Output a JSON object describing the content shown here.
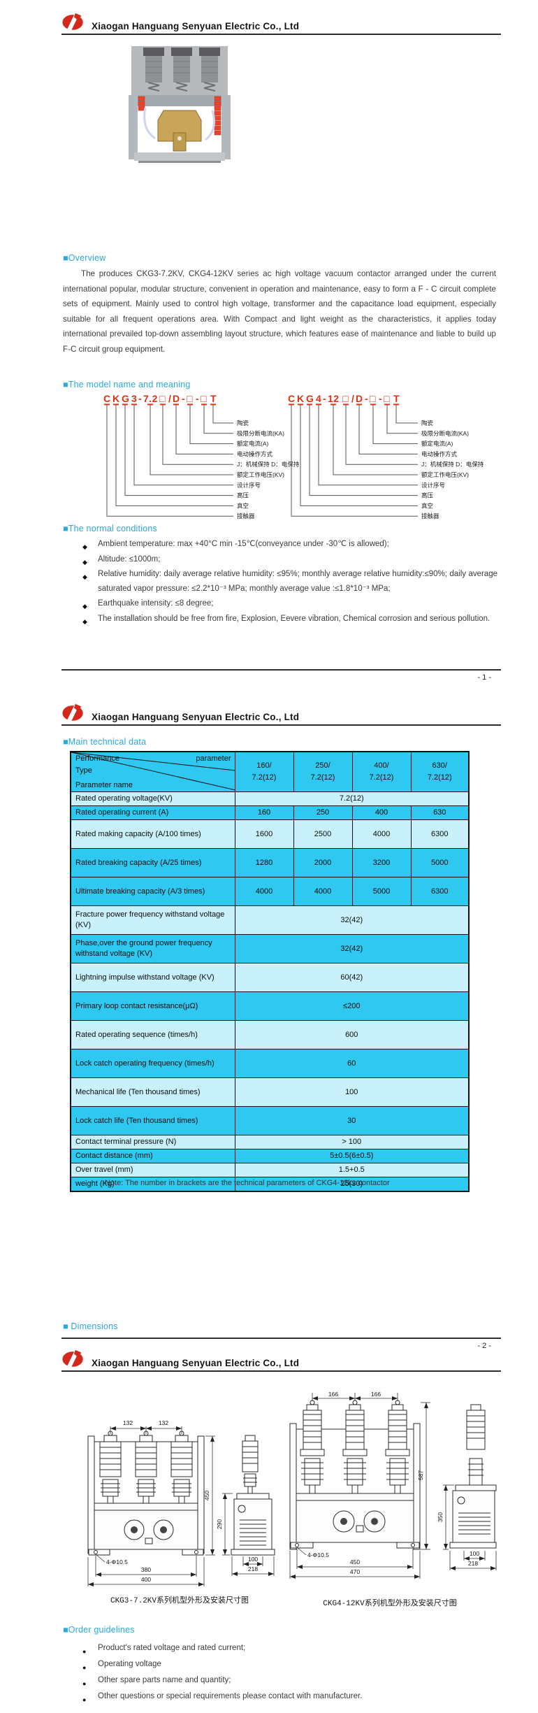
{
  "header": {
    "company": "Xiaogan Hanguang Senyuan Electric Co., Ltd"
  },
  "page_numbers": {
    "p1": "- 1 -",
    "p2": "- 2 -"
  },
  "colors": {
    "accent": "#2BA7DC",
    "model_red": "#E23012",
    "logo_red": "#D6281A",
    "table_dark": "#2EC8F0",
    "table_light": "#C9F1FB"
  },
  "sections": {
    "overview": {
      "title": "■Overview",
      "body": "The produces CKG3-7.2KV, CKG4-12KV series ac high voltage vacuum contactor arranged under the current international popular, modular structure, convenient in operation and maintenance, easy to form a F - C circuit complete sets of equipment. Mainly used to control high voltage, transformer and the capacitance load equipment, especially suitable for all frequent operations area. With Compact and light weight as the characteristics, it applies today international prevailed top-down assembling layout structure, which features ease of maintenance and liable to build up F-C circuit group equipment."
    },
    "model_diagrams": {
      "title": "■The model name and meaning",
      "left": {
        "model": "CKG3-7.2□/D-□-□T",
        "segments": [
          "C",
          "K",
          "G",
          "3",
          "-",
          "7.2",
          "□",
          "/",
          "D",
          "-",
          "□",
          "-",
          "□",
          "T"
        ]
      },
      "right": {
        "model": "CKG4-12□/D-□-□T",
        "segments": [
          "C",
          "K",
          "G",
          "4",
          "-",
          "12",
          "□",
          "/",
          "D",
          "-",
          "□",
          "-",
          "□",
          "T"
        ]
      },
      "labels": [
        "陶瓷",
        "极限分断电流(KA)",
        "额定电流(A)",
        "电动操作方式",
        "J：机械保持 D：电保持",
        "额定工作电压(KV)",
        "设计序号",
        "高压",
        "真空",
        "接触器"
      ]
    },
    "normal": {
      "title": "■The normal conditions",
      "bullets": [
        "Ambient temperature: max +40°C min -15℃(conveyance under -30℃  is allowed);",
        "Altitude: ≤1000m;",
        "Relative humidity: daily average relative humidity: ≤95%; monthly average relative humidity:≤90%; daily average saturated vapor pressure: ≤2.2*10⁻³ MPa; monthly average value :≤1.8*10⁻³ MPa;",
        "Earthquake intensity: ≤8 degree;",
        "The installation should be free from fire, Explosion, Eevere vibration, Chemical corrosion and serious pollution."
      ]
    },
    "technical": {
      "title": "■Main technical data",
      "corner": {
        "a": "Performance",
        "b": "parameter",
        "c": "Type",
        "d": "Parameter name"
      },
      "columns": [
        {
          "top": "160/",
          "bottom": "7.2(12)"
        },
        {
          "top": "250/",
          "bottom": "7.2(12)"
        },
        {
          "top": "400/",
          "bottom": "7.2(12)"
        },
        {
          "top": "630/",
          "bottom": "7.2(12)"
        }
      ],
      "rows": [
        {
          "name": "Rated operating voltage(KV)",
          "values": [
            "7.2(12)"
          ],
          "shade": "light"
        },
        {
          "name": "Rated operating current (A)",
          "values": [
            "160",
            "250",
            "400",
            "630"
          ],
          "shade": "dark"
        },
        {
          "name": "Rated making capacity (A/100 times)",
          "values": [
            "1600",
            "2500",
            "4000",
            "6300"
          ],
          "shade": "light"
        },
        {
          "name": "Rated breaking capacity (A/25 times)",
          "values": [
            "1280",
            "2000",
            "3200",
            "5000"
          ],
          "shade": "dark"
        },
        {
          "name": "Ultimate breaking capacity (A/3 times)",
          "values": [
            "4000",
            "4000",
            "5000",
            "6300"
          ],
          "shade": "dark"
        },
        {
          "name": "Fracture power frequency withstand voltage (KV)",
          "values": [
            "32(42)"
          ],
          "shade": "light"
        },
        {
          "name": "Phase,over the ground power frequency withstand voltage (KV)",
          "values": [
            "32(42)"
          ],
          "shade": "dark"
        },
        {
          "name": "Lightning impulse withstand voltage (KV)",
          "values": [
            "60(42)"
          ],
          "shade": "light"
        },
        {
          "name": "Primary loop contact resistance(μΩ)",
          "values": [
            "≤200"
          ],
          "shade": "dark"
        },
        {
          "name": "Rated operating sequence (times/h)",
          "values": [
            "600"
          ],
          "shade": "light"
        },
        {
          "name": "Lock catch operating frequency (times/h)",
          "values": [
            "60"
          ],
          "shade": "dark"
        },
        {
          "name": "Mechanical life (Ten thousand times)",
          "values": [
            "100"
          ],
          "shade": "light"
        },
        {
          "name": "Lock catch life (Ten thousand times)",
          "values": [
            "30"
          ],
          "shade": "dark"
        },
        {
          "name": "Contact terminal pressure (N)",
          "values": [
            "> 100"
          ],
          "shade": "light"
        },
        {
          "name": "Contact distance (mm)",
          "values": [
            "5±0.5(6±0.5)"
          ],
          "shade": "dark"
        },
        {
          "name": "Over travel (mm)",
          "values": [
            "1.5+0.5"
          ],
          "shade": "light"
        },
        {
          "name": "weight (Kg)",
          "values": [
            "25(30)"
          ],
          "shade": "dark"
        }
      ],
      "note": "Note:  The number in brackets are the technical parameters of CKG4-12kv contactor"
    },
    "dimensions": {
      "title": "■ Dimensions",
      "ckg3": {
        "caption": "CKG3-7.2KV系列机型外形及安装尺寸图",
        "pole_pitch1": "132",
        "pole_pitch2": "132",
        "height": "450",
        "side_height": "290",
        "holes": "4-Φ10.5",
        "mount_width": "380",
        "width": "400",
        "side_mount": "100",
        "depth": "218"
      },
      "ckg4": {
        "caption": "CKG4-12KV系列机型外形及安装尺寸图",
        "pole_pitch1": "166",
        "pole_pitch2": "166",
        "height": "587",
        "side_height": "350",
        "holes": "4-Φ10.5",
        "mount_width": "450",
        "width": "470",
        "side_mount": "100",
        "depth": "218"
      }
    },
    "order": {
      "title": "■Order guidelines",
      "bullets": [
        "Product's rated voltage and rated current;",
        "Operating voltage",
        "Other spare parts name and quantity;",
        "Other questions or special requirements please contact with manufacturer."
      ]
    }
  }
}
